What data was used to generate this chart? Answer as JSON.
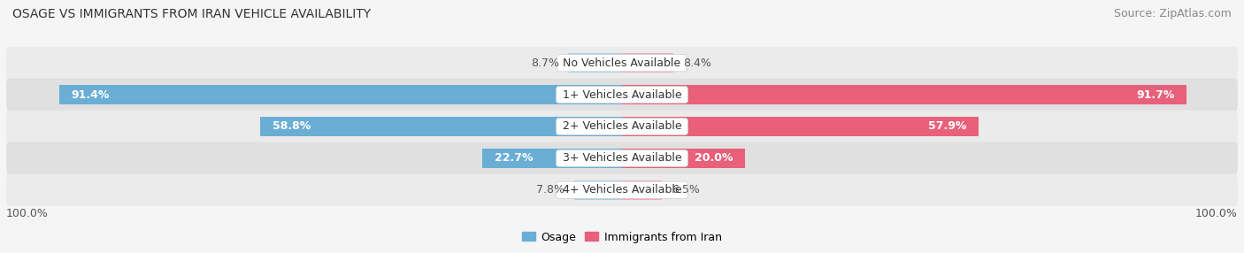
{
  "title": "OSAGE VS IMMIGRANTS FROM IRAN VEHICLE AVAILABILITY",
  "source": "Source: ZipAtlas.com",
  "categories": [
    "No Vehicles Available",
    "1+ Vehicles Available",
    "2+ Vehicles Available",
    "3+ Vehicles Available",
    "4+ Vehicles Available"
  ],
  "osage_values": [
    8.7,
    91.4,
    58.8,
    22.7,
    7.8
  ],
  "iran_values": [
    8.4,
    91.7,
    57.9,
    20.0,
    6.5
  ],
  "osage_color_large": "#6aaed6",
  "osage_color_small": "#aacde8",
  "iran_color_large": "#e8607a",
  "iran_color_small": "#f4a8ba",
  "bar_height": 0.62,
  "row_colors": [
    "#ebebeb",
    "#e0e0e0"
  ],
  "max_value": 100.0,
  "legend_osage": "Osage",
  "legend_iran": "Immigrants from Iran",
  "title_fontsize": 10,
  "label_fontsize": 9,
  "source_fontsize": 9,
  "category_fontsize": 9,
  "large_threshold": 15
}
